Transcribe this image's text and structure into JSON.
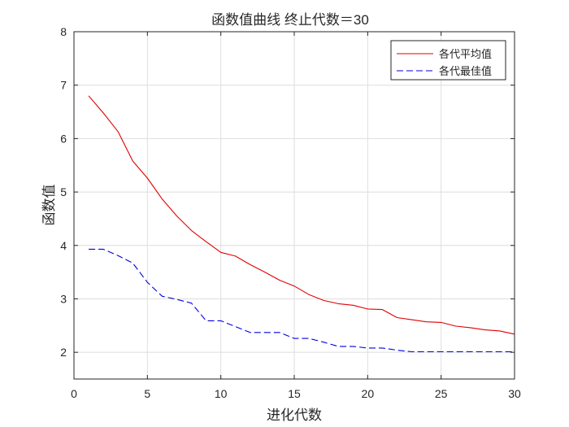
{
  "chart_data": {
    "type": "line",
    "title": "函数值曲线  终止代数＝30",
    "xlabel": "进化代数",
    "ylabel": "函数值",
    "xlim": [
      0,
      30
    ],
    "ylim": [
      1.5,
      8
    ],
    "xticks": [
      0,
      5,
      10,
      15,
      20,
      25,
      30
    ],
    "yticks": [
      2,
      3,
      4,
      5,
      6,
      7,
      8
    ],
    "grid": true,
    "legend_position": "top-right",
    "x": [
      1,
      2,
      3,
      4,
      5,
      6,
      7,
      8,
      9,
      10,
      11,
      12,
      13,
      14,
      15,
      16,
      17,
      18,
      19,
      20,
      21,
      22,
      23,
      24,
      25,
      26,
      27,
      28,
      29,
      30
    ],
    "series": [
      {
        "name": "各代平均值",
        "color": "#e00000",
        "style": "solid",
        "values": [
          6.8,
          6.48,
          6.13,
          5.58,
          5.26,
          4.87,
          4.55,
          4.28,
          4.07,
          3.87,
          3.8,
          3.64,
          3.5,
          3.35,
          3.24,
          3.08,
          2.97,
          2.91,
          2.88,
          2.81,
          2.8,
          2.65,
          2.61,
          2.57,
          2.56,
          2.49,
          2.46,
          2.42,
          2.4,
          2.34
        ]
      },
      {
        "name": "各代最佳值",
        "color": "#0000e0",
        "style": "dashed",
        "values": [
          3.93,
          3.93,
          3.81,
          3.67,
          3.31,
          3.05,
          2.99,
          2.92,
          2.59,
          2.59,
          2.48,
          2.37,
          2.37,
          2.37,
          2.26,
          2.26,
          2.19,
          2.11,
          2.11,
          2.08,
          2.08,
          2.04,
          2.01,
          2.01,
          2.01,
          2.01,
          2.01,
          2.01,
          2.01,
          2.01
        ]
      }
    ]
  }
}
